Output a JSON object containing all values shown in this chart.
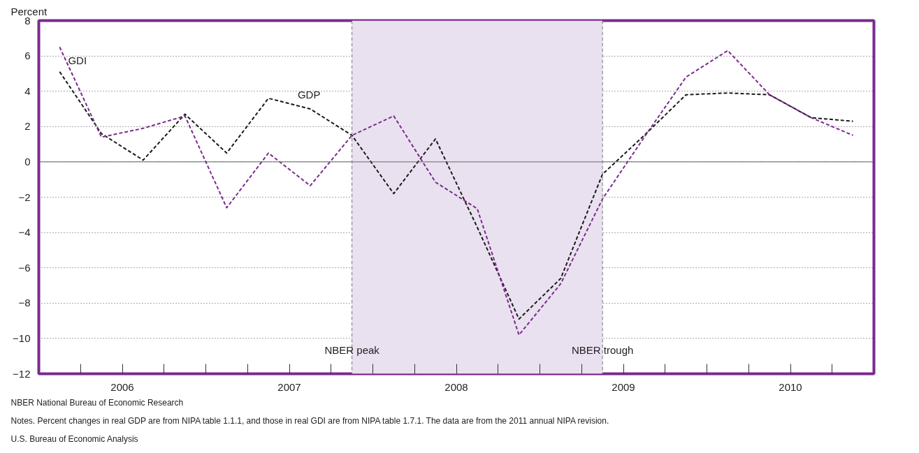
{
  "chart_data": {
    "type": "line",
    "ylabel": "Percent",
    "x": [
      2006.125,
      2006.375,
      2006.625,
      2006.875,
      2007.125,
      2007.375,
      2007.625,
      2007.875,
      2008.125,
      2008.375,
      2008.625,
      2008.875,
      2009.125,
      2009.375,
      2009.625,
      2009.875,
      2010.125,
      2010.375,
      2010.625,
      2010.875
    ],
    "series": [
      {
        "name": "GDP",
        "color": "#1a1a1a",
        "values": [
          5.1,
          1.6,
          0.1,
          2.7,
          0.5,
          3.6,
          3.0,
          1.5,
          -1.8,
          1.3,
          -3.7,
          -8.9,
          -6.6,
          -0.7,
          1.5,
          3.8,
          3.9,
          3.8,
          2.5,
          2.3
        ]
      },
      {
        "name": "GDI",
        "color": "#7b2a8e",
        "values": [
          6.5,
          1.4,
          1.9,
          2.6,
          -2.6,
          0.5,
          -1.35,
          1.5,
          2.6,
          -1.15,
          -2.65,
          -9.8,
          -6.9,
          -2.1,
          1.4,
          4.8,
          6.3,
          3.8,
          2.5,
          1.5
        ]
      }
    ],
    "xlim": [
      2006,
      2011
    ],
    "xticks": [
      {
        "value": 2006.25,
        "label": null
      },
      {
        "value": 2006.5,
        "label": "2006"
      },
      {
        "value": 2006.75,
        "label": null
      },
      {
        "value": 2007,
        "label": null
      },
      {
        "value": 2007.25,
        "label": null
      },
      {
        "value": 2007.5,
        "label": "2007"
      },
      {
        "value": 2007.75,
        "label": null
      },
      {
        "value": 2008,
        "label": null
      },
      {
        "value": 2008.25,
        "label": null
      },
      {
        "value": 2008.5,
        "label": "2008"
      },
      {
        "value": 2008.75,
        "label": null
      },
      {
        "value": 2009,
        "label": null
      },
      {
        "value": 2009.25,
        "label": null
      },
      {
        "value": 2009.5,
        "label": "2009"
      },
      {
        "value": 2009.75,
        "label": null
      },
      {
        "value": 2010,
        "label": null
      },
      {
        "value": 2010.25,
        "label": null
      },
      {
        "value": 2010.5,
        "label": "2010"
      },
      {
        "value": 2010.75,
        "label": null
      }
    ],
    "ylim": [
      -12,
      8
    ],
    "yticks": [
      {
        "value": -12,
        "label": "−12"
      },
      {
        "value": -10,
        "label": "−10"
      },
      {
        "value": -8,
        "label": "−8"
      },
      {
        "value": -6,
        "label": "−6"
      },
      {
        "value": -4,
        "label": "−4"
      },
      {
        "value": -2,
        "label": "−2"
      },
      0,
      2,
      4,
      6,
      8
    ],
    "grid": "y",
    "legend": false,
    "line_style": "dashed",
    "marker": "none",
    "ref_lines": [
      {
        "axis": "y",
        "value": 0,
        "color": "#666666",
        "line_style": "solid"
      },
      {
        "axis": "x",
        "value": 2007.875,
        "label": "NBER peak",
        "color": "#777777",
        "line_style": "dashed"
      },
      {
        "axis": "x",
        "value": 2009.375,
        "label": "NBER trough",
        "color": "#777777",
        "line_style": "dashed"
      }
    ],
    "bands": [
      {
        "axis": "x",
        "from": 2007.875,
        "to": 2009.375,
        "color": "#e9e1ef"
      }
    ],
    "annotations": [
      "NBER National Bureau of Economic Research",
      "Notes. Percent changes in real GDP are from NIPA table 1.1.1, and those in real GDI are from NIPA table 1.7.1. The data are from the 2011 annual NIPA revision.",
      "U.S. Bureau of Economic Analysis"
    ]
  }
}
